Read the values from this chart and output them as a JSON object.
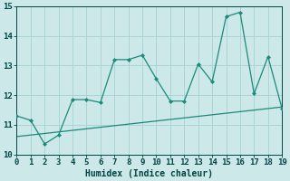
{
  "xlabel": "Humidex (Indice chaleur)",
  "x": [
    0,
    1,
    2,
    3,
    4,
    5,
    6,
    7,
    8,
    9,
    10,
    11,
    12,
    13,
    14,
    15,
    16,
    17,
    18,
    19
  ],
  "y_main": [
    11.3,
    11.15,
    10.35,
    10.65,
    11.85,
    11.85,
    11.75,
    13.2,
    13.2,
    13.35,
    12.55,
    11.8,
    11.8,
    13.05,
    12.45,
    14.65,
    14.8,
    12.05,
    13.3,
    11.55
  ],
  "y_trend_start": 10.6,
  "y_trend_end": 11.6,
  "xlim": [
    0,
    19
  ],
  "ylim": [
    10,
    15
  ],
  "yticks": [
    10,
    11,
    12,
    13,
    14,
    15
  ],
  "xticks": [
    0,
    1,
    2,
    3,
    4,
    5,
    6,
    7,
    8,
    9,
    10,
    11,
    12,
    13,
    14,
    15,
    16,
    17,
    18,
    19
  ],
  "line_color": "#1a8a7a",
  "bg_color": "#cce8e8",
  "grid_color": "#aad4d4",
  "marker": "D",
  "marker_size": 2.0,
  "line_width": 0.9,
  "tick_color": "#004444",
  "label_fontsize": 6.5,
  "xlabel_fontsize": 7.0
}
